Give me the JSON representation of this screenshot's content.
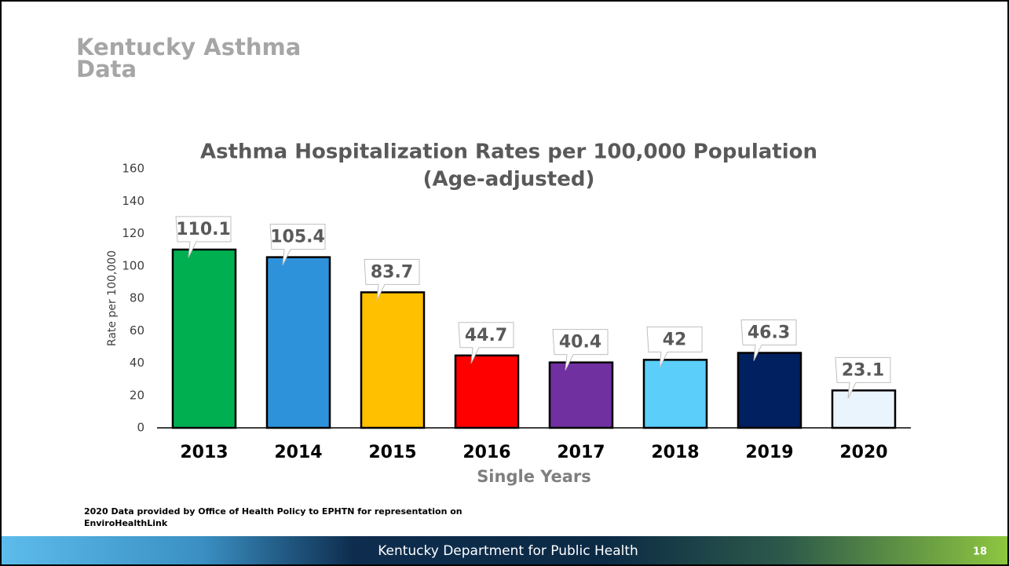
{
  "slide": {
    "title_lines": [
      "Kentucky Asthma",
      "Data"
    ],
    "note_lines": [
      "2020 Data provided by Office of Health Policy to EPHTN for representation on",
      "EnviroHealthLink"
    ],
    "footer": "Kentucky Department for Public Health",
    "page_number": "18"
  },
  "chart_data": {
    "type": "bar",
    "title": "Asthma Hospitalization Rates per 100,000 Population",
    "subtitle": "(Age-adjusted)",
    "x_label": "Single Years",
    "y_label": "Rate per 100,000",
    "categories": [
      "2013",
      "2014",
      "2015",
      "2016",
      "2017",
      "2018",
      "2019",
      "2020"
    ],
    "values": [
      110.1,
      105.4,
      83.7,
      44.7,
      40.4,
      42,
      46.3,
      23.1
    ],
    "colors": [
      "#00b050",
      "#2e92db",
      "#ffc000",
      "#ff0000",
      "#7030a0",
      "#5bcefa",
      "#002060",
      "#eaf4fd"
    ],
    "ylim": [
      0,
      160
    ],
    "yticks": [
      0,
      20,
      40,
      60,
      80,
      100,
      120,
      140,
      160
    ],
    "grid": false
  }
}
